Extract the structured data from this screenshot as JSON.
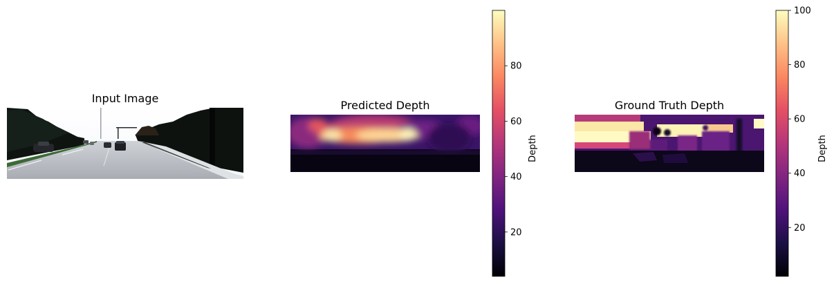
{
  "figure": {
    "panels": [
      {
        "title": "Input Image"
      },
      {
        "title": "Predicted Depth",
        "colorbar_label": "Depth"
      },
      {
        "title": "Ground Truth Depth",
        "colorbar_label": "Depth"
      }
    ]
  },
  "colormap": {
    "name": "magma",
    "stops": [
      "#000004",
      "#1c1044",
      "#4f127b",
      "#812581",
      "#b5367a",
      "#e55064",
      "#fb8761",
      "#fec287",
      "#fcfdbf"
    ]
  },
  "chart_data": [
    {
      "type": "image",
      "title": "Input Image",
      "content": "road scene photograph"
    },
    {
      "type": "heatmap",
      "title": "Predicted Depth",
      "colorbar": {
        "label": "Depth",
        "range": [
          4,
          100
        ],
        "ticks": [
          20,
          40,
          60,
          80
        ]
      }
    },
    {
      "type": "heatmap",
      "title": "Ground Truth Depth",
      "colorbar": {
        "label": "Depth",
        "range": [
          2,
          100
        ],
        "ticks": [
          20,
          40,
          60,
          80,
          100
        ]
      }
    }
  ]
}
